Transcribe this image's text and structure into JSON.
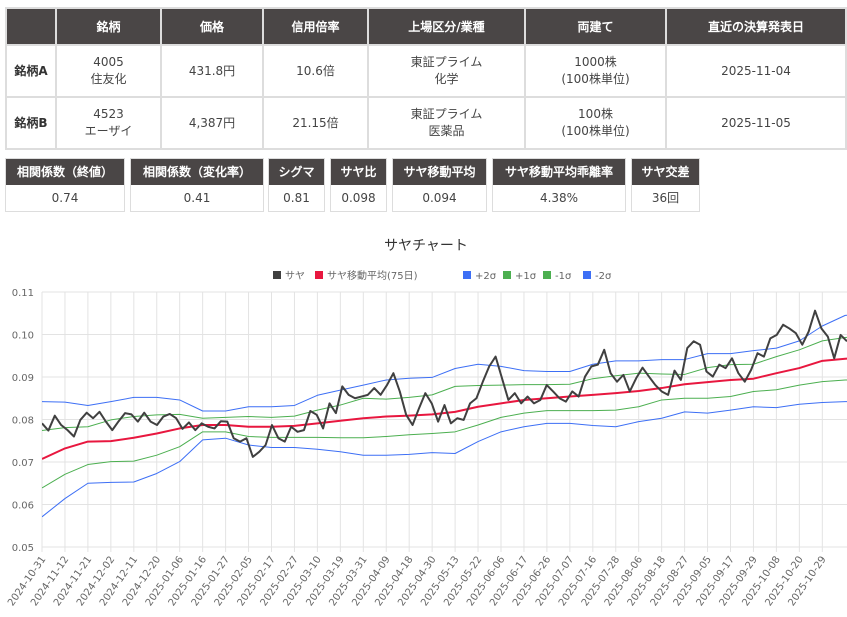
{
  "stocks_table": {
    "headers": [
      "",
      "銘柄",
      "価格",
      "信用倍率",
      "上場区分/業種",
      "両建て",
      "直近の決算発表日"
    ],
    "rows": [
      {
        "label": "銘柄A",
        "code": "4005",
        "name": "住友化",
        "price": "431.8円",
        "margin_ratio": "10.6倍",
        "market": "東証プライム",
        "industry": "化学",
        "hedge": "1000株",
        "hedge_unit": "(100株単位)",
        "earnings_date": "2025-11-04"
      },
      {
        "label": "銘柄B",
        "code": "4523",
        "name": "エーザイ",
        "price": "4,387円",
        "margin_ratio": "21.15倍",
        "market": "東証プライム",
        "industry": "医薬品",
        "hedge": "100株",
        "hedge_unit": "(100株単位)",
        "earnings_date": "2025-11-05"
      }
    ]
  },
  "stats": [
    {
      "label": "相関係数（終値）",
      "value": "0.74"
    },
    {
      "label": "相関係数（変化率）",
      "value": "0.41"
    },
    {
      "label": "シグマ",
      "value": "0.81"
    },
    {
      "label": "サヤ比",
      "value": "0.098"
    },
    {
      "label": "サヤ移動平均",
      "value": "0.094"
    },
    {
      "label": "サヤ移動平均乖離率",
      "value": "4.38%"
    },
    {
      "label": "サヤ交差",
      "value": "36回"
    }
  ],
  "chart_data": {
    "type": "line",
    "title": "サヤチャート",
    "legend_position": "top",
    "grid": true,
    "ylim": [
      0.05,
      0.11
    ],
    "y_ticks": [
      "0.11",
      "0.10",
      "0.09",
      "0.08",
      "0.07",
      "0.06",
      "0.05"
    ],
    "x_ticks": [
      "2024-10-31",
      "2024-11-12",
      "2024-11-21",
      "2024-12-02",
      "2024-12-11",
      "2024-12-20",
      "2025-01-06",
      "2025-01-16",
      "2025-01-27",
      "2025-02-05",
      "2025-02-17",
      "2025-02-27",
      "2025-03-10",
      "2025-03-19",
      "2025-03-31",
      "2025-04-09",
      "2025-04-18",
      "2025-04-30",
      "2025-05-13",
      "2025-05-22",
      "2025-06-06",
      "2025-06-17",
      "2025-06-26",
      "2025-07-07",
      "2025-07-16",
      "2025-07-28",
      "2025-08-06",
      "2025-08-18",
      "2025-08-27",
      "2025-09-05",
      "2025-09-17",
      "2025-09-29",
      "2025-10-08",
      "2025-10-20",
      "2025-10-29"
    ],
    "series": [
      {
        "name": "サヤ",
        "color": "#404040",
        "values": [
          0.0791,
          0.0774,
          0.0809,
          0.0787,
          0.0775,
          0.076,
          0.0799,
          0.0816,
          0.0803,
          0.0818,
          0.0795,
          0.0775,
          0.0796,
          0.0815,
          0.0812,
          0.0795,
          0.0816,
          0.0795,
          0.0787,
          0.0807,
          0.0813,
          0.0803,
          0.0778,
          0.0793,
          0.0775,
          0.0791,
          0.0783,
          0.0779,
          0.0796,
          0.0795,
          0.0756,
          0.0748,
          0.0756,
          0.0712,
          0.0724,
          0.074,
          0.0787,
          0.0756,
          0.0748,
          0.0783,
          0.0771,
          0.0775,
          0.082,
          0.0811,
          0.0779,
          0.0838,
          0.0815,
          0.0878,
          0.0858,
          0.085,
          0.0854,
          0.0858,
          0.0874,
          0.0858,
          0.0881,
          0.0909,
          0.0866,
          0.0811,
          0.0787,
          0.0826,
          0.0862,
          0.0838,
          0.0795,
          0.0834,
          0.0791,
          0.0803,
          0.0799,
          0.0838,
          0.085,
          0.0889,
          0.0925,
          0.0948,
          0.0897,
          0.0846,
          0.0862,
          0.0838,
          0.0854,
          0.0838,
          0.0846,
          0.0881,
          0.0866,
          0.085,
          0.0842,
          0.0866,
          0.0854,
          0.0901,
          0.0925,
          0.0929,
          0.0964,
          0.0909,
          0.0889,
          0.0905,
          0.0866,
          0.0897,
          0.0922,
          0.0901,
          0.0881,
          0.0866,
          0.0858,
          0.0915,
          0.0893,
          0.0968,
          0.0984,
          0.0976,
          0.0913,
          0.0901,
          0.0929,
          0.0921,
          0.0944,
          0.0909,
          0.0889,
          0.0917,
          0.0956,
          0.0948,
          0.0991,
          0.0999,
          0.1023,
          0.1014,
          0.1003,
          0.0976,
          0.1007,
          0.1056,
          0.1014,
          0.0995,
          0.0944,
          0.0999,
          0.0984
        ]
      },
      {
        "name": "サヤ移動平均(75日)",
        "color": "#e8173f",
        "values": [
          0.0707,
          0.0732,
          0.0748,
          0.0749,
          0.0757,
          0.0767,
          0.0779,
          0.0787,
          0.0787,
          0.0783,
          0.0783,
          0.0785,
          0.0791,
          0.0797,
          0.0803,
          0.0807,
          0.0809,
          0.0812,
          0.0818,
          0.083,
          0.0838,
          0.0846,
          0.085,
          0.0854,
          0.0858,
          0.0862,
          0.0867,
          0.0874,
          0.0883,
          0.0888,
          0.0893,
          0.0896,
          0.0909,
          0.0921,
          0.0938,
          0.0943,
          0.0945
        ]
      },
      {
        "name": "+2σ",
        "color": "#3d6ff5",
        "values": [
          0.0842,
          0.0841,
          0.0833,
          0.0842,
          0.0852,
          0.0852,
          0.0846,
          0.082,
          0.082,
          0.083,
          0.083,
          0.0833,
          0.0857,
          0.0869,
          0.0881,
          0.0893,
          0.0897,
          0.0899,
          0.092,
          0.093,
          0.0925,
          0.0915,
          0.0913,
          0.0913,
          0.093,
          0.0938,
          0.0938,
          0.0941,
          0.0941,
          0.0955,
          0.0955,
          0.0962,
          0.0968,
          0.0985,
          0.102,
          0.1045,
          0.1047
        ]
      },
      {
        "name": "+1σ",
        "color": "#4caf50",
        "values": [
          0.0774,
          0.0781,
          0.0783,
          0.0799,
          0.0807,
          0.0811,
          0.0812,
          0.0803,
          0.0805,
          0.0807,
          0.0805,
          0.0808,
          0.0822,
          0.0834,
          0.085,
          0.0848,
          0.0852,
          0.0858,
          0.0878,
          0.088,
          0.0881,
          0.0882,
          0.0882,
          0.0883,
          0.0896,
          0.0903,
          0.0909,
          0.0907,
          0.0906,
          0.0922,
          0.0929,
          0.093,
          0.0948,
          0.0964,
          0.0985,
          0.0993,
          0.0995
        ]
      },
      {
        "name": "-1σ",
        "color": "#4caf50",
        "values": [
          0.0639,
          0.0671,
          0.0694,
          0.0701,
          0.0702,
          0.0716,
          0.0736,
          0.0771,
          0.0771,
          0.076,
          0.0758,
          0.0758,
          0.0758,
          0.0757,
          0.0757,
          0.076,
          0.0764,
          0.0767,
          0.0771,
          0.0787,
          0.0805,
          0.0815,
          0.0821,
          0.0821,
          0.0821,
          0.0822,
          0.083,
          0.0846,
          0.085,
          0.085,
          0.0854,
          0.0866,
          0.087,
          0.0881,
          0.0889,
          0.0893,
          0.0894
        ]
      },
      {
        "name": "-2σ",
        "color": "#3d6ff5",
        "values": [
          0.0571,
          0.0614,
          0.065,
          0.0652,
          0.0653,
          0.0673,
          0.0701,
          0.0752,
          0.0756,
          0.074,
          0.0734,
          0.0734,
          0.073,
          0.0724,
          0.0716,
          0.0716,
          0.0718,
          0.0722,
          0.072,
          0.0748,
          0.0771,
          0.0783,
          0.0791,
          0.0791,
          0.0786,
          0.0783,
          0.0795,
          0.0803,
          0.0818,
          0.0815,
          0.0822,
          0.083,
          0.0828,
          0.0836,
          0.084,
          0.0842,
          0.0843
        ]
      }
    ]
  }
}
